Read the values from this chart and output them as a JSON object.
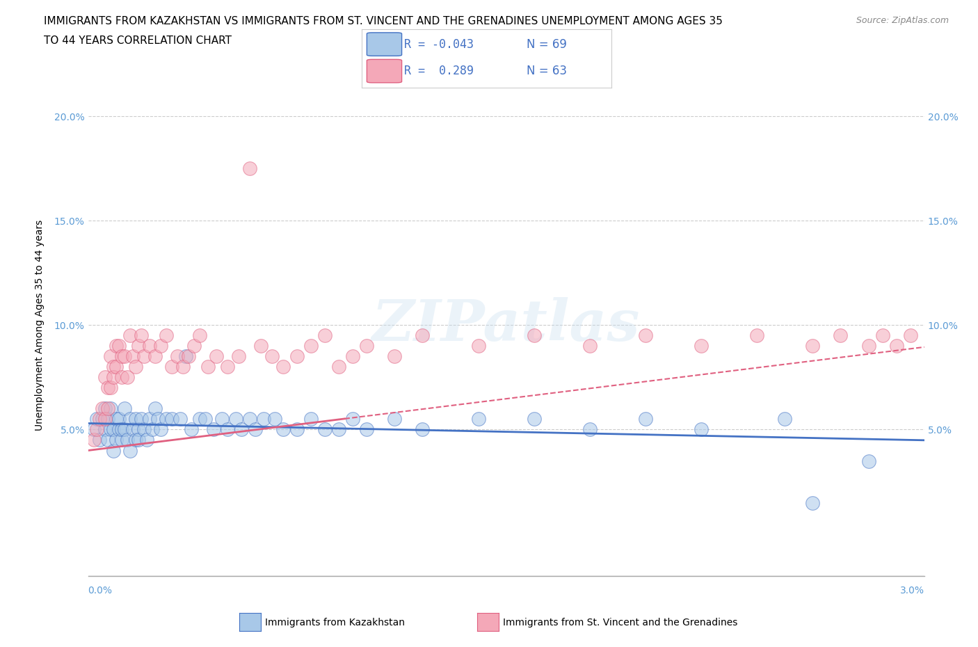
{
  "title_line1": "IMMIGRANTS FROM KAZAKHSTAN VS IMMIGRANTS FROM ST. VINCENT AND THE GRENADINES UNEMPLOYMENT AMONG AGES 35",
  "title_line2": "TO 44 YEARS CORRELATION CHART",
  "source": "Source: ZipAtlas.com",
  "ylabel": "Unemployment Among Ages 35 to 44 years",
  "xlim": [
    0.0,
    3.0
  ],
  "ylim": [
    -2.0,
    22.0
  ],
  "yticks": [
    5.0,
    10.0,
    15.0,
    20.0
  ],
  "color_kaz": "#a8c8e8",
  "color_svg": "#f4a8b8",
  "trendline_color_kaz": "#4472c4",
  "trendline_color_svg": "#e06080",
  "tick_color": "#5b9bd5",
  "watermark": "ZIPatlas",
  "kazakhstan_x": [
    0.02,
    0.03,
    0.04,
    0.05,
    0.06,
    0.06,
    0.07,
    0.07,
    0.08,
    0.08,
    0.09,
    0.09,
    0.1,
    0.1,
    0.11,
    0.11,
    0.12,
    0.12,
    0.13,
    0.13,
    0.14,
    0.15,
    0.15,
    0.16,
    0.17,
    0.17,
    0.18,
    0.18,
    0.19,
    0.2,
    0.21,
    0.22,
    0.23,
    0.24,
    0.25,
    0.26,
    0.28,
    0.3,
    0.33,
    0.35,
    0.37,
    0.4,
    0.42,
    0.45,
    0.48,
    0.5,
    0.53,
    0.55,
    0.58,
    0.6,
    0.63,
    0.67,
    0.7,
    0.75,
    0.8,
    0.85,
    0.9,
    0.95,
    1.0,
    1.1,
    1.2,
    1.4,
    1.6,
    1.8,
    2.0,
    2.2,
    2.5,
    2.6,
    2.8
  ],
  "kazakhstan_y": [
    5.0,
    5.5,
    4.5,
    5.5,
    6.0,
    5.0,
    5.5,
    4.5,
    6.0,
    5.0,
    5.0,
    4.0,
    5.5,
    4.5,
    5.0,
    5.5,
    4.5,
    5.0,
    6.0,
    5.0,
    4.5,
    5.5,
    4.0,
    5.0,
    5.5,
    4.5,
    5.0,
    4.5,
    5.5,
    5.0,
    4.5,
    5.5,
    5.0,
    6.0,
    5.5,
    5.0,
    5.5,
    5.5,
    5.5,
    8.5,
    5.0,
    5.5,
    5.5,
    5.0,
    5.5,
    5.0,
    5.5,
    5.0,
    5.5,
    5.0,
    5.5,
    5.5,
    5.0,
    5.0,
    5.5,
    5.0,
    5.0,
    5.5,
    5.0,
    5.5,
    5.0,
    5.5,
    5.5,
    5.0,
    5.5,
    5.0,
    5.5,
    1.5,
    3.5
  ],
  "svg_x": [
    0.02,
    0.03,
    0.04,
    0.05,
    0.06,
    0.06,
    0.07,
    0.07,
    0.08,
    0.08,
    0.09,
    0.09,
    0.1,
    0.1,
    0.11,
    0.12,
    0.12,
    0.13,
    0.14,
    0.15,
    0.16,
    0.17,
    0.18,
    0.19,
    0.2,
    0.22,
    0.24,
    0.26,
    0.28,
    0.3,
    0.32,
    0.34,
    0.36,
    0.38,
    0.4,
    0.43,
    0.46,
    0.5,
    0.54,
    0.58,
    0.62,
    0.66,
    0.7,
    0.75,
    0.8,
    0.85,
    0.9,
    0.95,
    1.0,
    1.1,
    1.2,
    1.4,
    1.6,
    1.8,
    2.0,
    2.2,
    2.4,
    2.6,
    2.7,
    2.8,
    2.85,
    2.9,
    2.95
  ],
  "svg_y": [
    4.5,
    5.0,
    5.5,
    6.0,
    7.5,
    5.5,
    7.0,
    6.0,
    8.5,
    7.0,
    8.0,
    7.5,
    9.0,
    8.0,
    9.0,
    8.5,
    7.5,
    8.5,
    7.5,
    9.5,
    8.5,
    8.0,
    9.0,
    9.5,
    8.5,
    9.0,
    8.5,
    9.0,
    9.5,
    8.0,
    8.5,
    8.0,
    8.5,
    9.0,
    9.5,
    8.0,
    8.5,
    8.0,
    8.5,
    17.5,
    9.0,
    8.5,
    8.0,
    8.5,
    9.0,
    9.5,
    8.0,
    8.5,
    9.0,
    8.5,
    9.5,
    9.0,
    9.5,
    9.0,
    9.5,
    9.0,
    9.5,
    9.0,
    9.5,
    9.0,
    9.5,
    9.0,
    9.5
  ]
}
